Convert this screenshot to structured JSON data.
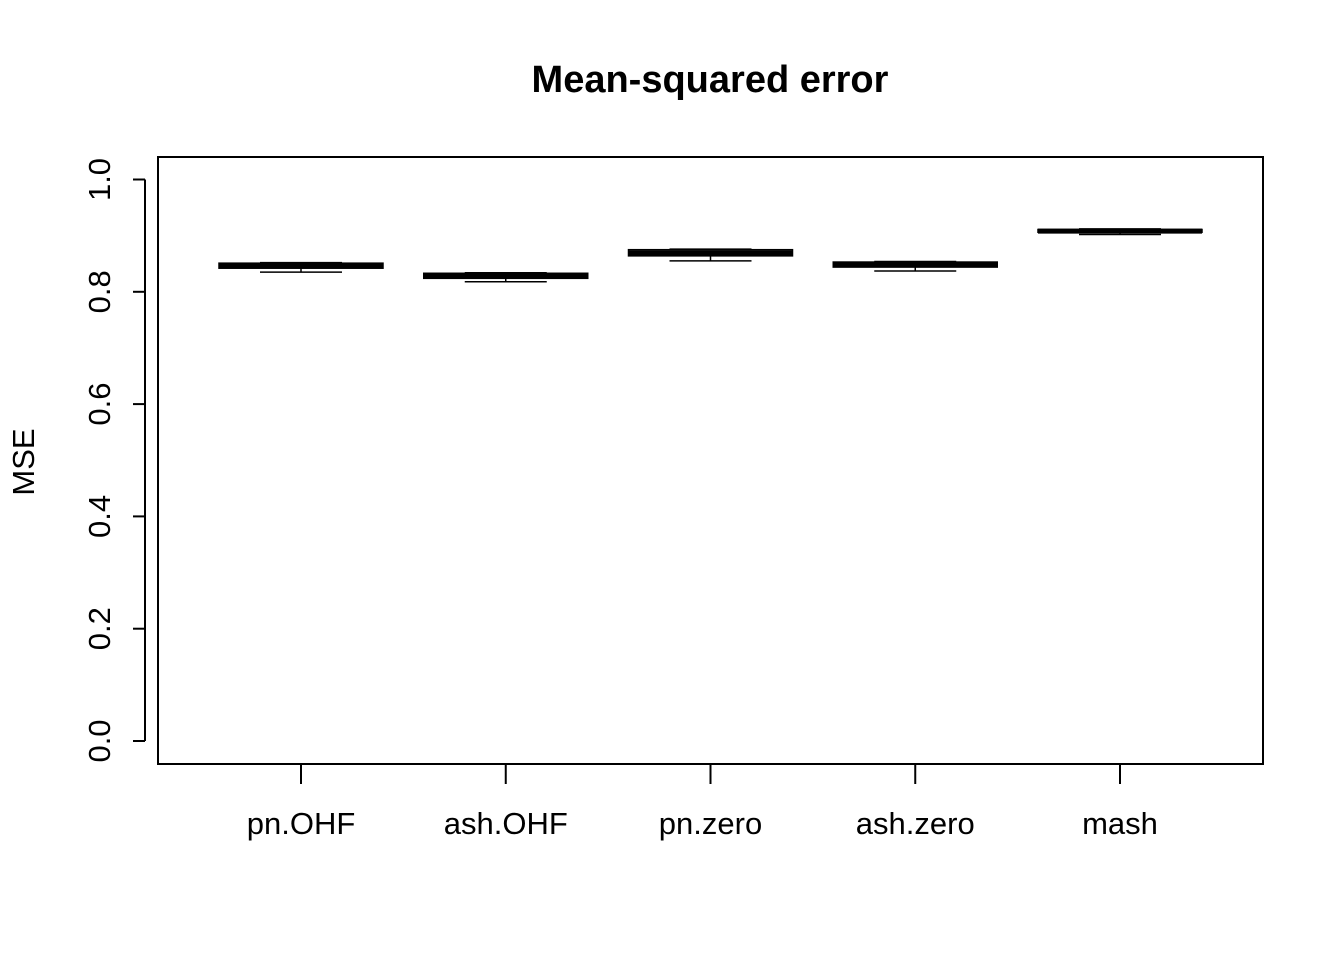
{
  "chart_data": {
    "type": "box",
    "title": "Mean-squared error",
    "xlabel": "",
    "ylabel": "MSE",
    "ylim": [
      0.0,
      1.0
    ],
    "yticks": [
      "0.0",
      "0.2",
      "0.4",
      "0.6",
      "0.8",
      "1.0"
    ],
    "grid": false,
    "categories": [
      "pn.OHF",
      "ash.OHF",
      "pn.zero",
      "ash.zero",
      "mash"
    ],
    "boxes": [
      {
        "category": "pn.OHF",
        "min": 0.835,
        "q1": 0.842,
        "median": 0.846,
        "q3": 0.851,
        "max": 0.852
      },
      {
        "category": "ash.OHF",
        "min": 0.818,
        "q1": 0.824,
        "median": 0.828,
        "q3": 0.833,
        "max": 0.834
      },
      {
        "category": "pn.zero",
        "min": 0.855,
        "q1": 0.864,
        "median": 0.869,
        "q3": 0.875,
        "max": 0.876
      },
      {
        "category": "ash.zero",
        "min": 0.837,
        "q1": 0.844,
        "median": 0.848,
        "q3": 0.853,
        "max": 0.854
      },
      {
        "category": "mash",
        "min": 0.902,
        "q1": 0.906,
        "median": 0.908,
        "q3": 0.911,
        "max": 0.912
      }
    ]
  }
}
